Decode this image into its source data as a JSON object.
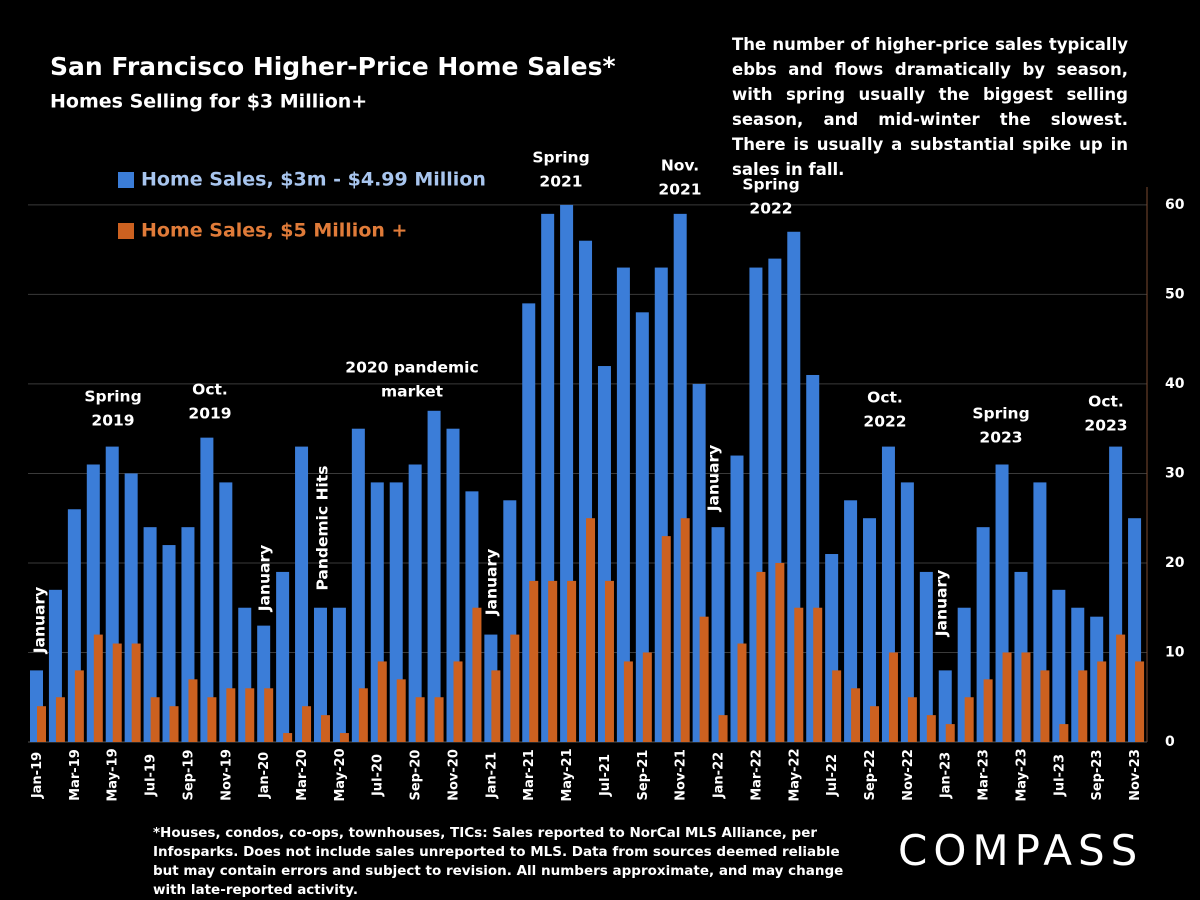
{
  "chart_data": {
    "type": "bar",
    "title": "San Francisco Higher-Price Home Sales*",
    "subtitle": "Homes Selling for $3 Million+",
    "note": "The number of higher-price sales typically ebbs and flows dramatically by season, with spring usually the biggest selling season, and mid-winter the slowest. There is usually a substantial spike up in sales in fall.",
    "footnote": "*Houses, condos, co-ops, townhouses, TICs:  Sales reported to NorCal MLS Alliance, per Infosparks. Does not include sales unreported to MLS. Data from sources deemed reliable but may contain errors and subject to revision.  All numbers approximate, and may change with late-reported activity.",
    "logo": "COMPASS",
    "categories": [
      "Jan-19",
      null,
      "Mar-19",
      null,
      "May-19",
      null,
      "Jul-19",
      null,
      "Sep-19",
      null,
      "Nov-19",
      null,
      "Jan-20",
      null,
      "Mar-20",
      null,
      "May-20",
      null,
      "Jul-20",
      null,
      "Sep-20",
      null,
      "Nov-20",
      null,
      "Jan-21",
      null,
      "Mar-21",
      null,
      "May-21",
      null,
      "Jul-21",
      null,
      "Sep-21",
      null,
      "Nov-21",
      null,
      "Jan-22",
      null,
      "Mar-22",
      null,
      "May-22",
      null,
      "Jul-22",
      null,
      "Sep-22",
      null,
      "Nov-22",
      null,
      "Jan-23",
      null,
      "Mar-23",
      null,
      "May-23",
      null,
      "Jul-23",
      null,
      "Sep-23",
      null,
      "Nov-23"
    ],
    "series": [
      {
        "name": "Home Sales, $3m - $4.99 Million",
        "color": "#3b7dd8",
        "values": [
          8,
          17,
          26,
          31,
          33,
          30,
          24,
          22,
          24,
          34,
          29,
          15,
          13,
          19,
          33,
          15,
          15,
          35,
          29,
          29,
          31,
          37,
          35,
          28,
          12,
          27,
          49,
          59,
          60,
          56,
          42,
          53,
          48,
          53,
          59,
          40,
          24,
          32,
          53,
          54,
          57,
          41,
          21,
          27,
          25,
          33,
          29,
          19,
          8,
          15,
          24,
          31,
          19,
          29,
          17,
          15,
          14,
          33,
          25
        ]
      },
      {
        "name": "Home Sales, $5 Million +",
        "color": "#cc6120",
        "values": [
          4,
          5,
          8,
          12,
          11,
          11,
          5,
          4,
          7,
          5,
          6,
          6,
          6,
          1,
          4,
          3,
          1,
          6,
          9,
          7,
          5,
          5,
          9,
          15,
          8,
          12,
          18,
          18,
          18,
          25,
          18,
          9,
          10,
          23,
          25,
          14,
          3,
          11,
          19,
          20,
          15,
          15,
          8,
          6,
          4,
          10,
          5,
          3,
          2,
          5,
          7,
          10,
          10,
          8,
          2,
          8,
          9,
          12,
          9
        ]
      }
    ],
    "annotations": [
      {
        "lines": [
          "January"
        ]
      },
      {
        "lines": [
          "Spring",
          "2019"
        ]
      },
      {
        "lines": [
          "Oct.",
          "2019"
        ]
      },
      {
        "lines": [
          "January"
        ]
      },
      {
        "lines": [
          "Pandemic Hits"
        ]
      },
      {
        "lines": [
          "2020 pandemic",
          "market"
        ]
      },
      {
        "lines": [
          "January"
        ]
      },
      {
        "lines": [
          "Spring",
          "2021"
        ]
      },
      {
        "lines": [
          "Nov.",
          "2021"
        ]
      },
      {
        "lines": [
          "January"
        ]
      },
      {
        "lines": [
          "Spring",
          "2022"
        ]
      },
      {
        "lines": [
          "Oct.",
          "2022"
        ]
      },
      {
        "lines": [
          "January"
        ]
      },
      {
        "lines": [
          "Spring",
          "2023"
        ]
      },
      {
        "lines": [
          "Oct.",
          "2023"
        ]
      }
    ],
    "ylim": [
      0,
      62
    ],
    "yticks": [
      0,
      10,
      20,
      30,
      40,
      50,
      60
    ],
    "y_axis_side": "right",
    "grid": true
  }
}
